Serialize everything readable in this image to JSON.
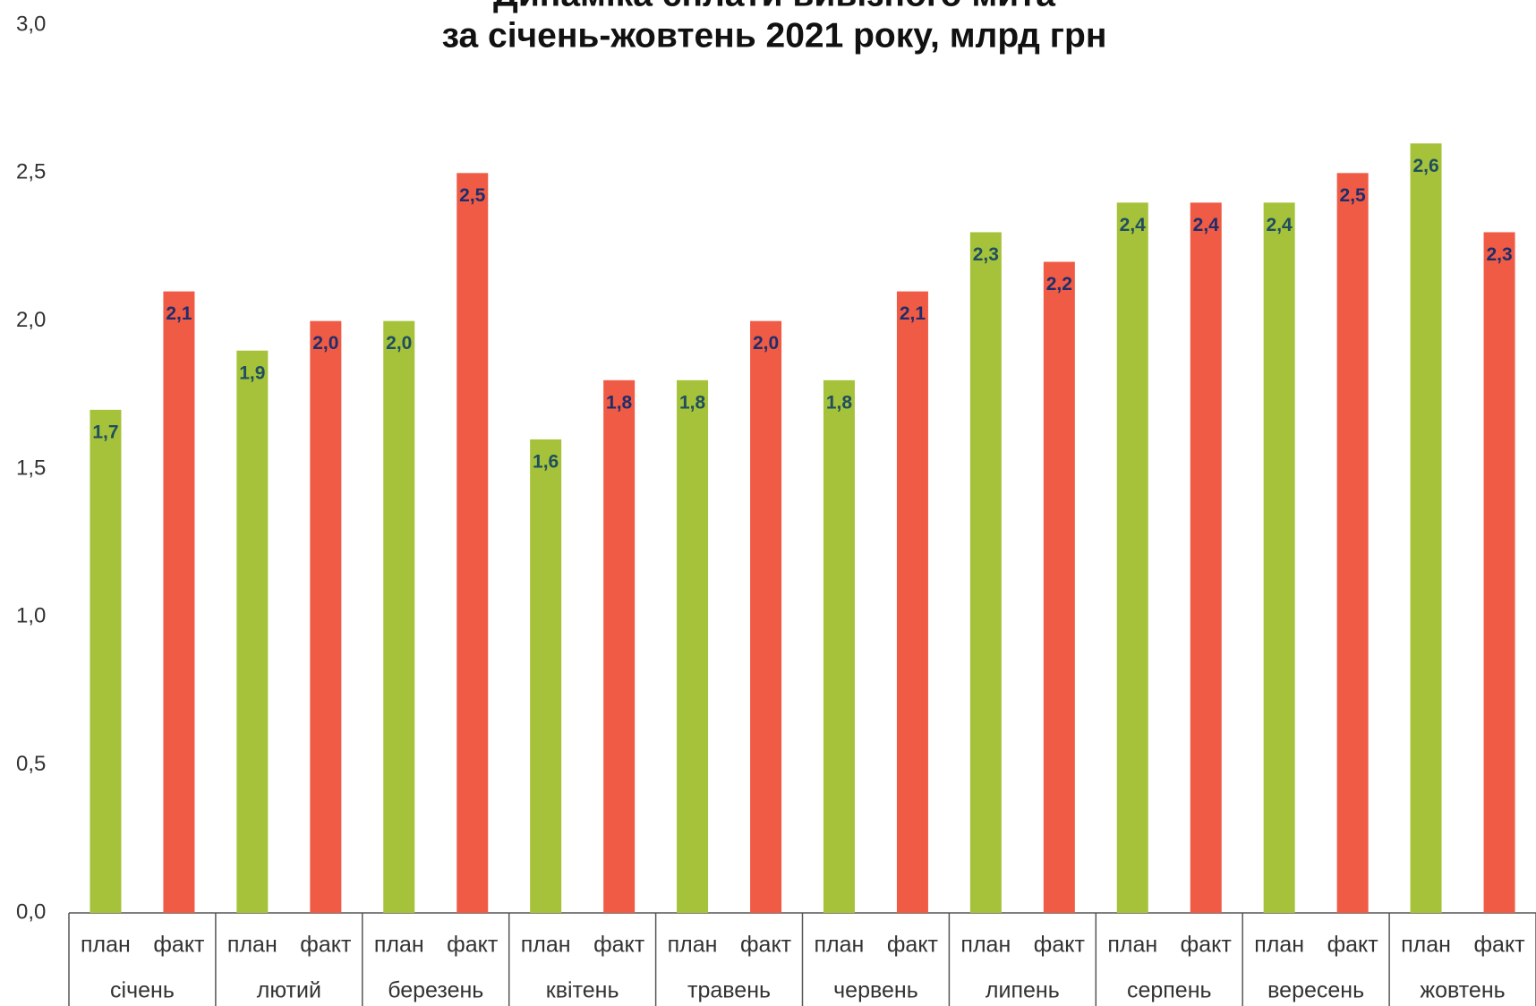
{
  "chart_data": {
    "type": "bar",
    "title": [
      "Динаміка сплати вивізного мита",
      "за січень-жовтень 2021 року, млрд грн"
    ],
    "categories": [
      "січень",
      "лютий",
      "березень",
      "квітень",
      "травень",
      "червень",
      "липень",
      "серпень",
      "вересень",
      "жовтень"
    ],
    "series": [
      {
        "name": "план",
        "color": "#a5c23a",
        "label_color": "#1f4e5f",
        "values": [
          1.7,
          1.9,
          2.0,
          1.6,
          1.8,
          1.8,
          2.3,
          2.4,
          2.4,
          2.6
        ],
        "value_labels": [
          "1,7",
          "1,9",
          "2,0",
          "1,6",
          "1,8",
          "1,8",
          "2,3",
          "2,4",
          "2,4",
          "2,6"
        ]
      },
      {
        "name": "факт",
        "color": "#ef5b45",
        "label_color": "#1f2d6b",
        "values": [
          2.1,
          2.0,
          2.5,
          1.8,
          2.0,
          2.1,
          2.2,
          2.4,
          2.5,
          2.3
        ],
        "value_labels": [
          "2,1",
          "2,0",
          "2,5",
          "1,8",
          "2,0",
          "2,1",
          "2,2",
          "2,4",
          "2,5",
          "2,3"
        ]
      }
    ],
    "ylim": [
      0,
      3
    ],
    "yticks": [
      {
        "value": 0,
        "label": "0,0"
      },
      {
        "value": 0.5,
        "label": "0,5"
      },
      {
        "value": 1,
        "label": "1,0"
      },
      {
        "value": 1.5,
        "label": "1,5"
      },
      {
        "value": 2,
        "label": "2,0"
      },
      {
        "value": 2.5,
        "label": "2,5"
      },
      {
        "value": 3,
        "label": "3,0"
      }
    ],
    "grid": false
  }
}
